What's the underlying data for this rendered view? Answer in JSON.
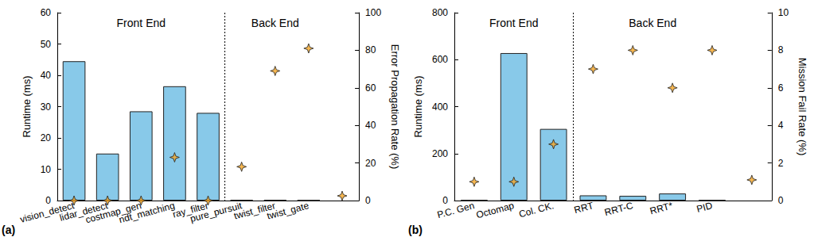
{
  "chart_data": [
    {
      "type": "bar",
      "title": "(a)",
      "categories": [
        "vision_detect",
        "lidar_detect",
        "costmap_gen",
        "ndt_matching",
        "ray_filter",
        "pure_pursuit",
        "twist_filter",
        "twist_gate",
        null
      ],
      "y_label": "Runtime (ms)",
      "y2_label": "Error Propagation Rate (%)",
      "ylim": [
        0,
        60
      ],
      "yticks": [
        0,
        10,
        20,
        30,
        40,
        50,
        60
      ],
      "y2lim": [
        0,
        100
      ],
      "y2ticks": [
        0,
        20,
        40,
        60,
        80,
        100
      ],
      "grid": false,
      "annotations": [
        {
          "text": "Front End",
          "from": "vision_detect",
          "to": "ray_filter"
        },
        {
          "text": "Back End",
          "from": "pure_pursuit",
          "to": "twist_gate"
        }
      ],
      "series": [
        {
          "type": "bar",
          "color": "#88c9e9",
          "values": [
            44.5,
            15,
            28.5,
            36.5,
            28,
            0.2,
            0.2,
            0.1,
            null
          ]
        },
        {
          "type": "scatter",
          "axis": "y2",
          "color": "#f5a524",
          "marker": "star4",
          "values": [
            0,
            0,
            0,
            23,
            0,
            18,
            69,
            81,
            2.5
          ]
        }
      ]
    },
    {
      "type": "bar",
      "title": "(b)",
      "categories": [
        "P.C. Gen",
        "Octomap",
        "Col. CK.",
        "RRT",
        "RRT-C",
        "RRT*",
        "PID",
        null
      ],
      "y_label": "Runtime (ms)",
      "y2_label": "Mission Fail Rate (%)",
      "ylim": [
        0,
        800
      ],
      "yticks": [
        0,
        200,
        400,
        600,
        800
      ],
      "y2lim": [
        0,
        10
      ],
      "y2ticks": [
        0,
        2,
        4,
        6,
        8,
        10
      ],
      "grid": false,
      "annotations": [
        {
          "text": "Front End",
          "from": "P.C. Gen",
          "to": "Col. CK."
        },
        {
          "text": "Back End",
          "from": "RRT",
          "to": "PID"
        }
      ],
      "series": [
        {
          "type": "bar",
          "color": "#88c9e9",
          "values": [
            2,
            628,
            305,
            22,
            20,
            30,
            2,
            null
          ]
        },
        {
          "type": "scatter",
          "axis": "y2",
          "color": "#f5a524",
          "marker": "star4",
          "values": [
            1,
            1,
            3,
            7,
            8,
            6,
            8,
            1.1
          ]
        }
      ]
    }
  ]
}
